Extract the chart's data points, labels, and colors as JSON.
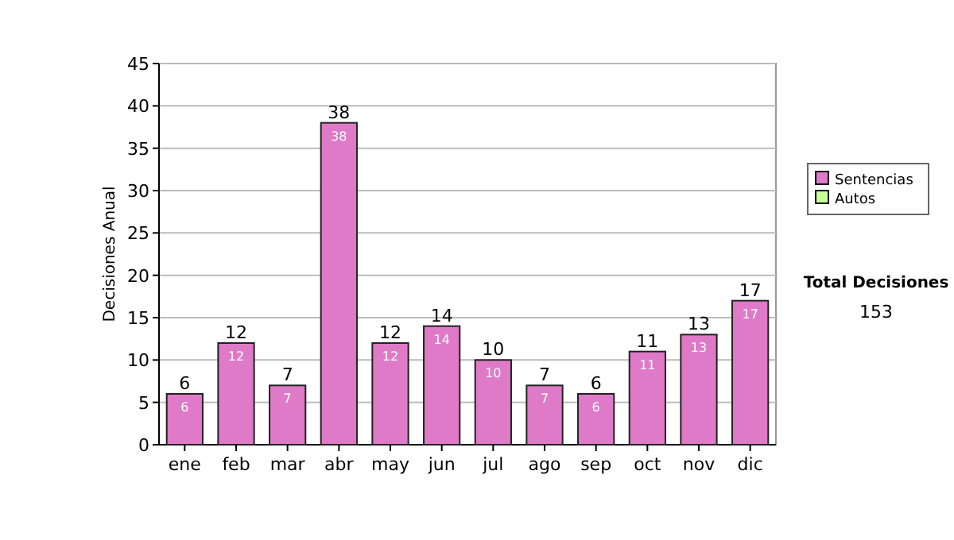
{
  "chart_data": {
    "type": "bar",
    "ylabel": "Decisiones Anual",
    "categories": [
      "ene",
      "feb",
      "mar",
      "abr",
      "may",
      "jun",
      "jul",
      "ago",
      "sep",
      "oct",
      "nov",
      "dic"
    ],
    "series": [
      {
        "name": "Sentencias",
        "color": "#df7ac8",
        "values": [
          6,
          12,
          7,
          38,
          12,
          14,
          10,
          7,
          6,
          11,
          13,
          17
        ],
        "value_labels": [
          "6",
          "12",
          "7",
          "38",
          "12",
          "14",
          "10",
          "7",
          "6",
          "11",
          "13",
          "17"
        ]
      },
      {
        "name": "Autos",
        "color": "#ccff99",
        "values": [
          0,
          0,
          0,
          0,
          0,
          0,
          0,
          0,
          0,
          0,
          0,
          0
        ]
      }
    ],
    "stacked": true,
    "totals": [
      "6",
      "12",
      "7",
      "38",
      "12",
      "14",
      "10",
      "7",
      "6",
      "11",
      "13",
      "17"
    ],
    "ylim": [
      0,
      45
    ],
    "yticks": [
      0,
      5,
      10,
      15,
      20,
      25,
      30,
      35,
      40,
      45
    ],
    "grid": "y",
    "legend": "right",
    "annotations": [
      "Total Decisiones",
      "153"
    ]
  }
}
